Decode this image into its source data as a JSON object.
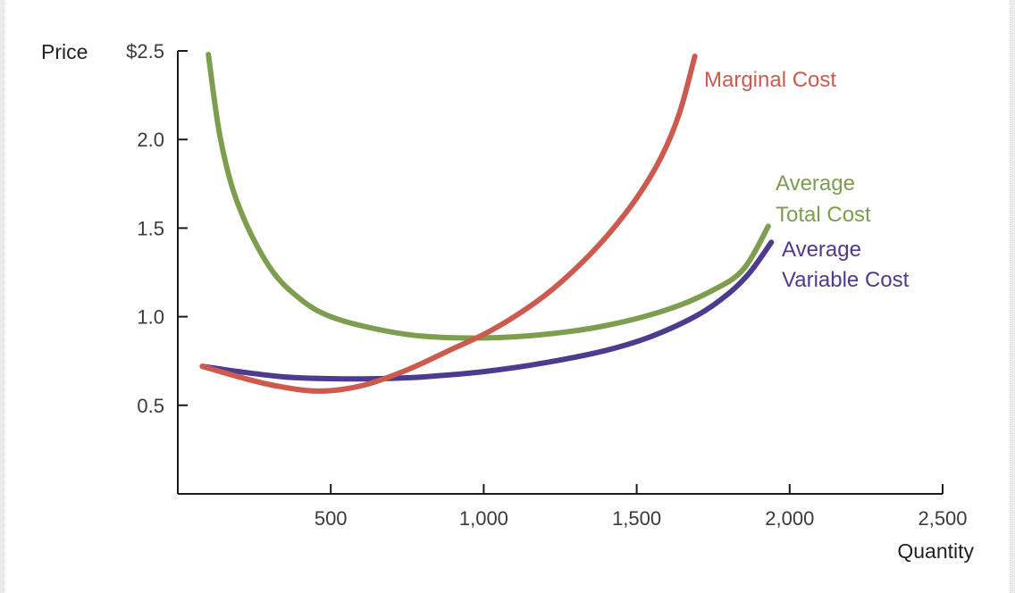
{
  "chart_data": {
    "type": "line",
    "title": "",
    "ylabel": "Price",
    "xlabel": "Quantity",
    "xlim": [
      0,
      2500
    ],
    "ylim": [
      0,
      2.5
    ],
    "x_ticks": [
      500,
      1000,
      1500,
      2000,
      2500
    ],
    "x_tick_labels": [
      "500",
      "1,000",
      "1,500",
      "2,000",
      "2,500"
    ],
    "y_ticks": [
      2.5,
      2.0,
      1.5,
      1.0,
      0.5
    ],
    "y_tick_labels": [
      "$2.5",
      "2.0",
      "1.5",
      "1.0",
      "0.5"
    ],
    "grid": false,
    "series": [
      {
        "name": "Marginal Cost",
        "label_lines": [
          "Marginal Cost"
        ],
        "color": "#cc5a4e",
        "points": [
          [
            80,
            0.72
          ],
          [
            200,
            0.66
          ],
          [
            320,
            0.61
          ],
          [
            460,
            0.58
          ],
          [
            600,
            0.61
          ],
          [
            750,
            0.7
          ],
          [
            900,
            0.82
          ],
          [
            1000,
            0.9
          ],
          [
            1100,
            1.0
          ],
          [
            1200,
            1.12
          ],
          [
            1300,
            1.27
          ],
          [
            1400,
            1.45
          ],
          [
            1500,
            1.67
          ],
          [
            1580,
            1.9
          ],
          [
            1640,
            2.15
          ],
          [
            1690,
            2.47
          ]
        ]
      },
      {
        "name": "Average Total Cost",
        "label_lines": [
          "Average",
          "Total Cost"
        ],
        "color": "#7d9d4f",
        "points": [
          [
            100,
            2.48
          ],
          [
            140,
            2.0
          ],
          [
            200,
            1.62
          ],
          [
            300,
            1.28
          ],
          [
            400,
            1.1
          ],
          [
            500,
            1.0
          ],
          [
            650,
            0.93
          ],
          [
            800,
            0.89
          ],
          [
            1000,
            0.88
          ],
          [
            1200,
            0.9
          ],
          [
            1400,
            0.95
          ],
          [
            1600,
            1.04
          ],
          [
            1750,
            1.15
          ],
          [
            1850,
            1.27
          ],
          [
            1930,
            1.51
          ]
        ]
      },
      {
        "name": "Average Variable Cost",
        "label_lines": [
          "Average",
          "Variable Cost"
        ],
        "color": "#4c3b8e",
        "points": [
          [
            80,
            0.72
          ],
          [
            200,
            0.69
          ],
          [
            350,
            0.66
          ],
          [
            500,
            0.65
          ],
          [
            650,
            0.65
          ],
          [
            800,
            0.66
          ],
          [
            1000,
            0.69
          ],
          [
            1200,
            0.74
          ],
          [
            1400,
            0.81
          ],
          [
            1550,
            0.89
          ],
          [
            1700,
            1.01
          ],
          [
            1800,
            1.13
          ],
          [
            1870,
            1.25
          ],
          [
            1940,
            1.42
          ]
        ]
      }
    ]
  }
}
